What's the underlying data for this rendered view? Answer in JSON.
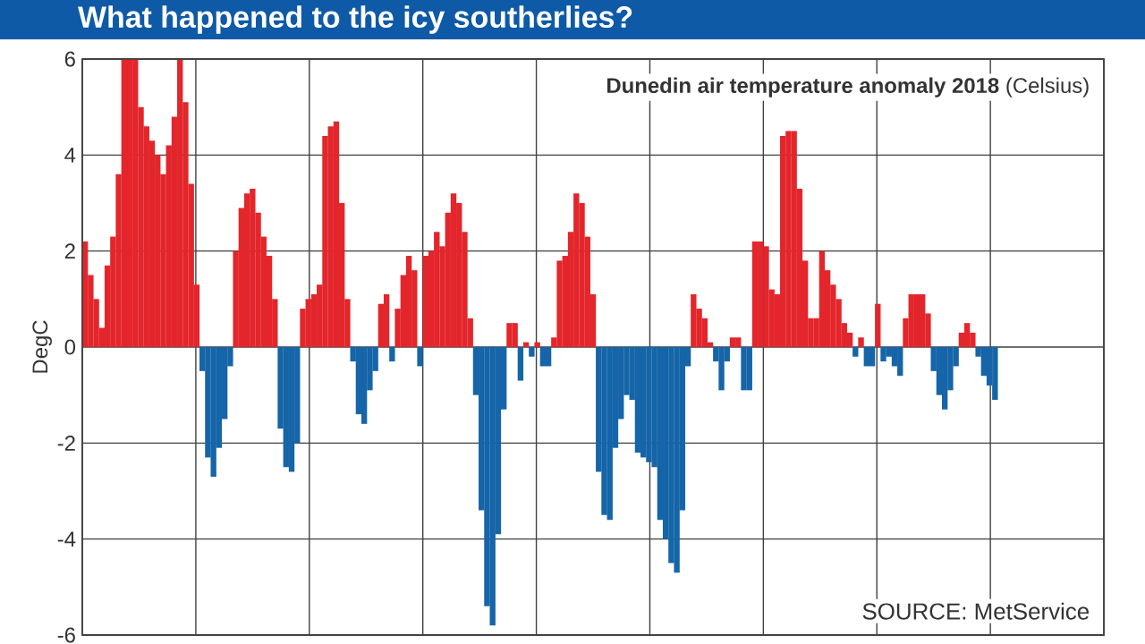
{
  "chart_data": {
    "type": "bar",
    "title": "What happened to the icy southerlies?",
    "subtitle": "**Dunedin air temperature anomaly 2018** (Celsius)",
    "ylabel": "DegC",
    "annotations": [
      "SOURCE: MetService"
    ],
    "ylim": [
      -6,
      6
    ],
    "yticks": [
      -6,
      -4,
      -2,
      0,
      2,
      4,
      6
    ],
    "grid": true,
    "categories": [
      null,
      null,
      null,
      null,
      null,
      null,
      null,
      null,
      null,
      null,
      null,
      null,
      null,
      null,
      null,
      null,
      null,
      null,
      null,
      null,
      null,
      null,
      null,
      null,
      null,
      null,
      null,
      null,
      null,
      null,
      null,
      null,
      null,
      null,
      null,
      null,
      null,
      null,
      null,
      null,
      null,
      null,
      null,
      null,
      null,
      null,
      null,
      null,
      null,
      null,
      null,
      null,
      null,
      null,
      null,
      null,
      null,
      null,
      null,
      null,
      null,
      null,
      null,
      null,
      null,
      null,
      null,
      null,
      null,
      null,
      null,
      null,
      null,
      null,
      null,
      null,
      null,
      null,
      null,
      null,
      null,
      null,
      null,
      null,
      null,
      null,
      null,
      null,
      null,
      null,
      null,
      null,
      null,
      null,
      null,
      null,
      null,
      null,
      null,
      null,
      null,
      null,
      null,
      null,
      null,
      null,
      null,
      null,
      null,
      null,
      null,
      null,
      null,
      null,
      null,
      null,
      null,
      null,
      null,
      null,
      null,
      null,
      null,
      null,
      null,
      null,
      null,
      null,
      null,
      null,
      null,
      null,
      null,
      null,
      null,
      null,
      null,
      null,
      null,
      null,
      null,
      null,
      null,
      null,
      null,
      null,
      null,
      null,
      null,
      null,
      null,
      null,
      null,
      null,
      null,
      null,
      null,
      null,
      null,
      null,
      null,
      null,
      null,
      null,
      null,
      null,
      null,
      null,
      null,
      null,
      null,
      null,
      null,
      null,
      null,
      null,
      null,
      null,
      null,
      null,
      null,
      null,
      null
    ],
    "values": [
      2.2,
      1.5,
      1.0,
      0.4,
      1.7,
      2.3,
      3.6,
      6.0,
      6.0,
      6.0,
      5.0,
      4.6,
      4.3,
      4.0,
      3.6,
      4.2,
      4.8,
      6.0,
      5.1,
      3.4,
      1.3,
      -0.5,
      -2.3,
      -2.7,
      -2.1,
      -1.5,
      -0.4,
      2.0,
      2.9,
      3.2,
      3.3,
      2.8,
      2.3,
      1.9,
      1.0,
      -1.7,
      -2.5,
      -2.6,
      -2.0,
      0.8,
      1.0,
      1.1,
      1.3,
      4.4,
      4.6,
      4.7,
      3.0,
      1.0,
      -0.3,
      -1.4,
      -1.6,
      -0.9,
      -0.5,
      0.9,
      1.1,
      -0.3,
      0.8,
      1.5,
      1.9,
      1.6,
      -0.4,
      1.9,
      2.0,
      2.4,
      2.1,
      2.8,
      3.2,
      3.0,
      2.4,
      0.6,
      -1.0,
      -3.4,
      -5.4,
      -5.8,
      -3.9,
      -1.3,
      0.5,
      0.5,
      -0.7,
      0.1,
      -0.2,
      0.1,
      -0.4,
      -0.4,
      0.2,
      1.8,
      1.9,
      2.4,
      3.2,
      3.0,
      2.3,
      1.1,
      -2.6,
      -3.5,
      -3.6,
      -2.1,
      -1.5,
      -1.0,
      -1.1,
      -2.2,
      -2.3,
      -2.4,
      -2.5,
      -3.6,
      -4.0,
      -4.5,
      -4.7,
      -3.4,
      -0.4,
      1.1,
      0.8,
      0.6,
      0.1,
      -0.3,
      -0.9,
      -0.3,
      0.2,
      0.2,
      -0.9,
      -0.9,
      2.2,
      2.2,
      2.1,
      1.2,
      1.1,
      4.4,
      4.5,
      4.5,
      3.3,
      1.8,
      0.6,
      0.6,
      2.0,
      1.6,
      1.3,
      1.0,
      0.5,
      0.3,
      -0.2,
      0.2,
      -0.4,
      -0.4,
      0.9,
      -0.3,
      -0.2,
      -0.4,
      -0.6,
      0.6,
      1.1,
      1.1,
      1.1,
      0.7,
      -0.5,
      -1.0,
      -1.3,
      -0.9,
      -0.4,
      0.3,
      0.5,
      0.3,
      -0.2,
      -0.6,
      -0.8,
      -1.1,
      null,
      null,
      null,
      null,
      null,
      null,
      null,
      null,
      null,
      null,
      null,
      null,
      null,
      null,
      null,
      null,
      null,
      null,
      null
    ],
    "colors": [
      "#e3262b",
      "#e3262b",
      "#e3262b",
      "#e3262b",
      "#e3262b",
      "#e3262b",
      "#e3262b",
      "#e3262b",
      "#e3262b",
      "#e3262b",
      "#e3262b",
      "#e3262b",
      "#e3262b",
      "#e3262b",
      "#e3262b",
      "#e3262b",
      "#e3262b",
      "#e3262b",
      "#e3262b",
      "#e3262b",
      "#e3262b",
      "#1565a8",
      "#1565a8",
      "#1565a8",
      "#1565a8",
      "#1565a8",
      "#1565a8",
      "#e3262b",
      "#e3262b",
      "#e3262b",
      "#e3262b",
      "#e3262b",
      "#e3262b",
      "#e3262b",
      "#e3262b",
      "#1565a8",
      "#1565a8",
      "#1565a8",
      "#1565a8",
      "#e3262b",
      "#e3262b",
      "#e3262b",
      "#e3262b",
      "#e3262b",
      "#e3262b",
      "#e3262b",
      "#e3262b",
      "#e3262b",
      "#1565a8",
      "#1565a8",
      "#1565a8",
      "#1565a8",
      "#1565a8",
      "#e3262b",
      "#e3262b",
      "#1565a8",
      "#e3262b",
      "#e3262b",
      "#e3262b",
      "#e3262b",
      "#1565a8",
      "#e3262b",
      "#e3262b",
      "#e3262b",
      "#e3262b",
      "#e3262b",
      "#e3262b",
      "#e3262b",
      "#e3262b",
      "#e3262b",
      "#1565a8",
      "#1565a8",
      "#1565a8",
      "#1565a8",
      "#1565a8",
      "#1565a8",
      "#e3262b",
      "#e3262b",
      "#1565a8",
      "#e3262b",
      "#1565a8",
      "#e3262b",
      "#1565a8",
      "#1565a8",
      "#e3262b",
      "#e3262b",
      "#e3262b",
      "#e3262b",
      "#e3262b",
      "#e3262b",
      "#e3262b",
      "#e3262b",
      "#1565a8",
      "#1565a8",
      "#1565a8",
      "#1565a8",
      "#1565a8",
      "#1565a8",
      "#1565a8",
      "#1565a8",
      "#1565a8",
      "#1565a8",
      "#1565a8",
      "#1565a8",
      "#1565a8",
      "#1565a8",
      "#1565a8",
      "#1565a8",
      "#1565a8",
      "#e3262b",
      "#e3262b",
      "#e3262b",
      "#e3262b",
      "#1565a8",
      "#1565a8",
      "#1565a8",
      "#e3262b",
      "#e3262b",
      "#1565a8",
      "#1565a8",
      "#e3262b",
      "#e3262b",
      "#e3262b",
      "#e3262b",
      "#e3262b",
      "#e3262b",
      "#e3262b",
      "#e3262b",
      "#e3262b",
      "#e3262b",
      "#e3262b",
      "#e3262b",
      "#e3262b",
      "#e3262b",
      "#e3262b",
      "#e3262b",
      "#e3262b",
      "#e3262b",
      "#1565a8",
      "#e3262b",
      "#1565a8",
      "#1565a8",
      "#e3262b",
      "#1565a8",
      "#1565a8",
      "#1565a8",
      "#1565a8",
      "#e3262b",
      "#e3262b",
      "#e3262b",
      "#e3262b",
      "#e3262b",
      "#1565a8",
      "#1565a8",
      "#1565a8",
      "#1565a8",
      "#1565a8",
      "#e3262b",
      "#e3262b",
      "#e3262b",
      "#1565a8",
      "#1565a8",
      "#1565a8",
      "#1565a8",
      null,
      null,
      null,
      null,
      null,
      null,
      null,
      null,
      null,
      null,
      null,
      null,
      null,
      null,
      null,
      null,
      null,
      null,
      null
    ]
  }
}
